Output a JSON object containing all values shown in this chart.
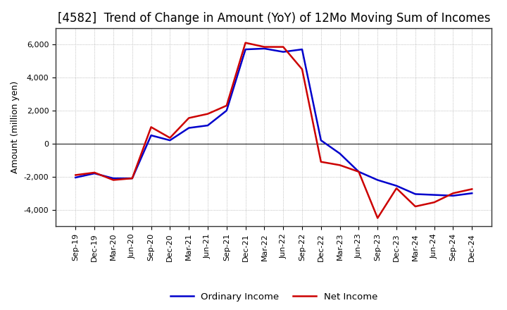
{
  "title": "[4582]  Trend of Change in Amount (YoY) of 12Mo Moving Sum of Incomes",
  "ylabel": "Amount (million yen)",
  "labels": [
    "Sep-19",
    "Dec-19",
    "Mar-20",
    "Jun-20",
    "Sep-20",
    "Dec-20",
    "Mar-21",
    "Jun-21",
    "Sep-21",
    "Dec-21",
    "Mar-22",
    "Jun-22",
    "Sep-22",
    "Dec-22",
    "Mar-23",
    "Jun-23",
    "Sep-23",
    "Dec-23",
    "Mar-24",
    "Jun-24",
    "Sep-24",
    "Dec-24"
  ],
  "ordinary_income": [
    -2050,
    -1800,
    -2100,
    -2100,
    500,
    200,
    950,
    1100,
    2000,
    5700,
    5750,
    5550,
    5700,
    200,
    -600,
    -1700,
    -2200,
    -2550,
    -3050,
    -3100,
    -3150,
    -3000
  ],
  "net_income": [
    -1900,
    -1750,
    -2200,
    -2100,
    1000,
    350,
    1550,
    1800,
    2300,
    6100,
    5850,
    5850,
    4500,
    -1100,
    -1300,
    -1700,
    -4500,
    -2700,
    -3800,
    -3550,
    -3000,
    -2750
  ],
  "ordinary_color": "#0000cc",
  "net_color": "#cc0000",
  "ylim": [
    -5000,
    7000
  ],
  "yticks": [
    -4000,
    -2000,
    0,
    2000,
    4000,
    6000
  ],
  "bg_color": "#ffffff",
  "grid_color": "#999999",
  "line_width": 1.8,
  "title_fontsize": 12,
  "axis_fontsize": 9,
  "tick_fontsize": 8,
  "legend_fontsize": 9.5
}
